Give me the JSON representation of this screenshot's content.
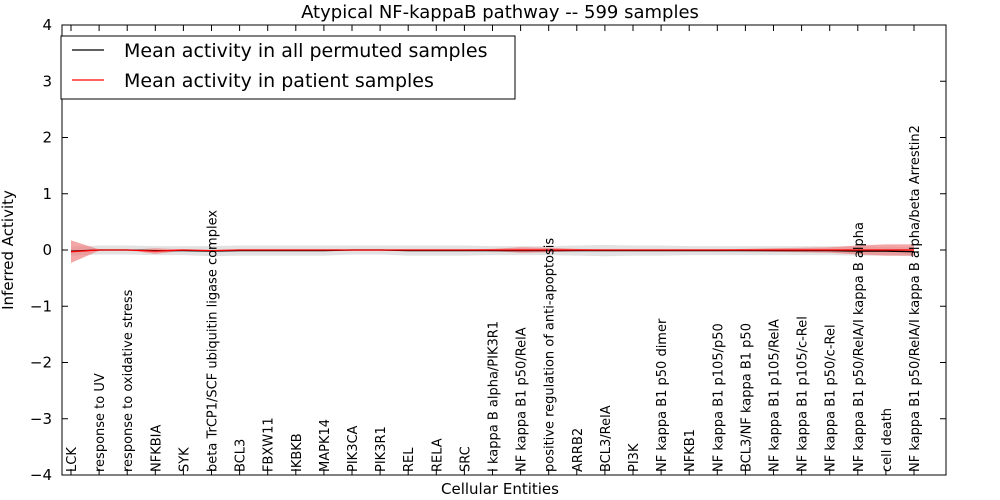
{
  "chart_data": {
    "type": "line",
    "title": "Atypical NF-kappaB pathway -- 599 samples",
    "xlabel": "Cellular Entities",
    "ylabel": "Inferred Activity",
    "ylim": [
      -4,
      4
    ],
    "yticks": [
      4,
      3,
      2,
      1,
      0,
      -1,
      -2,
      -3,
      -4
    ],
    "ytick_labels": [
      "4",
      "3",
      "2",
      "1",
      "0",
      "−1",
      "−2",
      "−3",
      "−4"
    ],
    "legend_position": "top-left",
    "categories": [
      "LCK",
      "response to UV",
      "response to oxidative stress",
      "NFKBIA",
      "SYK",
      "beta TrCP1/SCF ubiquitin ligase complex",
      "BCL3",
      "FBXW11",
      "IKBKB",
      "MAPK14",
      "PIK3CA",
      "PIK3R1",
      "REL",
      "RELA",
      "SRC",
      "I kappa B alpha/PIK3R1",
      "NF kappa B1 p50/RelA",
      "positive regulation of anti-apoptosis",
      "ARRB2",
      "BCL3/RelA",
      "PI3K",
      "NF kappa B1 p50 dimer",
      "NFKB1",
      "NF kappa B1 p105/p50",
      "BCL3/NF kappa B1 p50",
      "NF kappa B1 p105/RelA",
      "NF kappa B1 p105/c-Rel",
      "NF kappa B1 p50/c-Rel",
      "NF kappa B1 p50/RelA/I kappa B alpha",
      "cell death",
      "NF kappa B1 p50/RelA/I kappa B alpha/beta Arrestin2"
    ],
    "series": [
      {
        "name": "Mean activity in all permuted samples",
        "color": "#000000",
        "band_color": "#d3d3d3",
        "values": [
          -0.02,
          0.0,
          0.0,
          -0.01,
          -0.01,
          -0.02,
          -0.01,
          -0.01,
          -0.01,
          -0.01,
          0.0,
          0.0,
          -0.01,
          -0.01,
          -0.01,
          -0.01,
          -0.01,
          -0.01,
          -0.01,
          -0.01,
          -0.01,
          -0.01,
          -0.01,
          -0.01,
          -0.01,
          -0.01,
          -0.01,
          -0.01,
          -0.02,
          -0.02,
          -0.03
        ],
        "band": [
          0.08,
          0.08,
          0.08,
          0.08,
          0.08,
          0.09,
          0.09,
          0.09,
          0.09,
          0.09,
          0.08,
          0.08,
          0.09,
          0.09,
          0.09,
          0.08,
          0.08,
          0.08,
          0.09,
          0.1,
          0.09,
          0.09,
          0.08,
          0.08,
          0.08,
          0.08,
          0.08,
          0.08,
          0.08,
          0.08,
          0.08
        ]
      },
      {
        "name": "Mean activity in patient samples",
        "color": "#ff0000",
        "band_color": "#f08080",
        "values": [
          -0.03,
          0.0,
          0.0,
          -0.02,
          0.0,
          -0.01,
          0.0,
          0.0,
          0.0,
          0.0,
          0.0,
          0.0,
          0.0,
          0.0,
          0.0,
          0.0,
          0.0,
          0.0,
          0.0,
          0.0,
          0.0,
          0.0,
          0.0,
          0.0,
          0.0,
          0.0,
          0.0,
          0.0,
          0.0,
          0.0,
          0.0
        ],
        "band": [
          0.2,
          0.01,
          0.0,
          0.05,
          0.01,
          0.01,
          0.01,
          0.01,
          0.01,
          0.01,
          0.01,
          0.01,
          0.01,
          0.01,
          0.01,
          0.02,
          0.05,
          0.04,
          0.02,
          0.01,
          0.01,
          0.01,
          0.01,
          0.01,
          0.02,
          0.03,
          0.04,
          0.05,
          0.08,
          0.1,
          0.1
        ]
      }
    ]
  }
}
